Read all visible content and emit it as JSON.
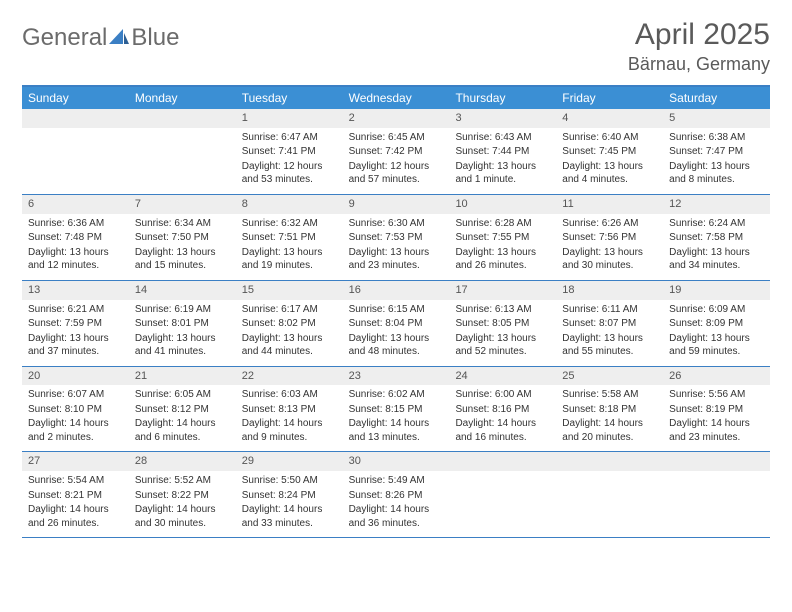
{
  "brand": {
    "part1": "General",
    "part2": "Blue"
  },
  "title": "April 2025",
  "location": "Bärnau, Germany",
  "colors": {
    "header_bg": "#3b8fd4",
    "border": "#3b7fc4",
    "daynum_bg": "#eeeeee",
    "text": "#333333",
    "title_text": "#5a5a5a"
  },
  "day_names": [
    "Sunday",
    "Monday",
    "Tuesday",
    "Wednesday",
    "Thursday",
    "Friday",
    "Saturday"
  ],
  "weeks": [
    [
      null,
      null,
      {
        "n": "1",
        "sr": "6:47 AM",
        "ss": "7:41 PM",
        "dl": "12 hours and 53 minutes."
      },
      {
        "n": "2",
        "sr": "6:45 AM",
        "ss": "7:42 PM",
        "dl": "12 hours and 57 minutes."
      },
      {
        "n": "3",
        "sr": "6:43 AM",
        "ss": "7:44 PM",
        "dl": "13 hours and 1 minute."
      },
      {
        "n": "4",
        "sr": "6:40 AM",
        "ss": "7:45 PM",
        "dl": "13 hours and 4 minutes."
      },
      {
        "n": "5",
        "sr": "6:38 AM",
        "ss": "7:47 PM",
        "dl": "13 hours and 8 minutes."
      }
    ],
    [
      {
        "n": "6",
        "sr": "6:36 AM",
        "ss": "7:48 PM",
        "dl": "13 hours and 12 minutes."
      },
      {
        "n": "7",
        "sr": "6:34 AM",
        "ss": "7:50 PM",
        "dl": "13 hours and 15 minutes."
      },
      {
        "n": "8",
        "sr": "6:32 AM",
        "ss": "7:51 PM",
        "dl": "13 hours and 19 minutes."
      },
      {
        "n": "9",
        "sr": "6:30 AM",
        "ss": "7:53 PM",
        "dl": "13 hours and 23 minutes."
      },
      {
        "n": "10",
        "sr": "6:28 AM",
        "ss": "7:55 PM",
        "dl": "13 hours and 26 minutes."
      },
      {
        "n": "11",
        "sr": "6:26 AM",
        "ss": "7:56 PM",
        "dl": "13 hours and 30 minutes."
      },
      {
        "n": "12",
        "sr": "6:24 AM",
        "ss": "7:58 PM",
        "dl": "13 hours and 34 minutes."
      }
    ],
    [
      {
        "n": "13",
        "sr": "6:21 AM",
        "ss": "7:59 PM",
        "dl": "13 hours and 37 minutes."
      },
      {
        "n": "14",
        "sr": "6:19 AM",
        "ss": "8:01 PM",
        "dl": "13 hours and 41 minutes."
      },
      {
        "n": "15",
        "sr": "6:17 AM",
        "ss": "8:02 PM",
        "dl": "13 hours and 44 minutes."
      },
      {
        "n": "16",
        "sr": "6:15 AM",
        "ss": "8:04 PM",
        "dl": "13 hours and 48 minutes."
      },
      {
        "n": "17",
        "sr": "6:13 AM",
        "ss": "8:05 PM",
        "dl": "13 hours and 52 minutes."
      },
      {
        "n": "18",
        "sr": "6:11 AM",
        "ss": "8:07 PM",
        "dl": "13 hours and 55 minutes."
      },
      {
        "n": "19",
        "sr": "6:09 AM",
        "ss": "8:09 PM",
        "dl": "13 hours and 59 minutes."
      }
    ],
    [
      {
        "n": "20",
        "sr": "6:07 AM",
        "ss": "8:10 PM",
        "dl": "14 hours and 2 minutes."
      },
      {
        "n": "21",
        "sr": "6:05 AM",
        "ss": "8:12 PM",
        "dl": "14 hours and 6 minutes."
      },
      {
        "n": "22",
        "sr": "6:03 AM",
        "ss": "8:13 PM",
        "dl": "14 hours and 9 minutes."
      },
      {
        "n": "23",
        "sr": "6:02 AM",
        "ss": "8:15 PM",
        "dl": "14 hours and 13 minutes."
      },
      {
        "n": "24",
        "sr": "6:00 AM",
        "ss": "8:16 PM",
        "dl": "14 hours and 16 minutes."
      },
      {
        "n": "25",
        "sr": "5:58 AM",
        "ss": "8:18 PM",
        "dl": "14 hours and 20 minutes."
      },
      {
        "n": "26",
        "sr": "5:56 AM",
        "ss": "8:19 PM",
        "dl": "14 hours and 23 minutes."
      }
    ],
    [
      {
        "n": "27",
        "sr": "5:54 AM",
        "ss": "8:21 PM",
        "dl": "14 hours and 26 minutes."
      },
      {
        "n": "28",
        "sr": "5:52 AM",
        "ss": "8:22 PM",
        "dl": "14 hours and 30 minutes."
      },
      {
        "n": "29",
        "sr": "5:50 AM",
        "ss": "8:24 PM",
        "dl": "14 hours and 33 minutes."
      },
      {
        "n": "30",
        "sr": "5:49 AM",
        "ss": "8:26 PM",
        "dl": "14 hours and 36 minutes."
      },
      null,
      null,
      null
    ]
  ],
  "labels": {
    "sunrise": "Sunrise:",
    "sunset": "Sunset:",
    "daylight": "Daylight:"
  }
}
